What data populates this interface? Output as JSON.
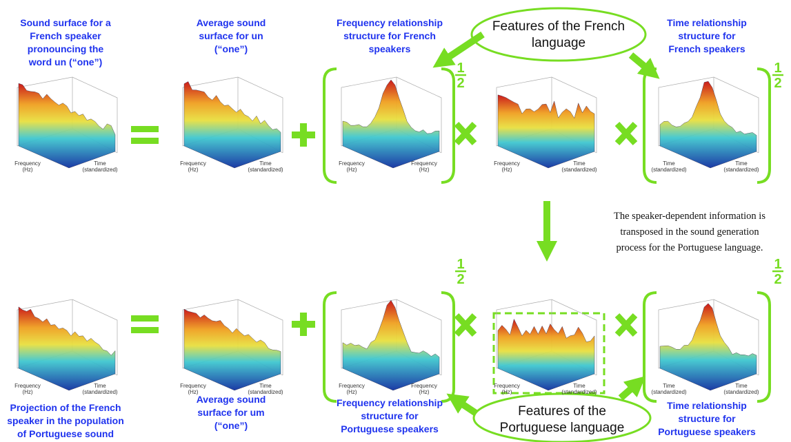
{
  "rows": [
    {
      "panels": [
        {
          "caption": [
            "Sound surface for a",
            "French speaker",
            "pronouncing the",
            "word  un (“one”)"
          ],
          "axis_labels": [
            [
              "Frequency",
              "(Hz)"
            ],
            [
              "Time",
              "(standardized)"
            ]
          ]
        },
        {
          "caption": [
            "Average sound",
            "surface for un",
            "(“one”)"
          ],
          "axis_labels": [
            [
              "Frequency",
              "(Hz)"
            ],
            [
              "Time",
              "(standardized)"
            ]
          ]
        },
        {
          "caption": [
            "Frequency relationship",
            "structure for French",
            "speakers"
          ],
          "axis_labels": [
            [
              "Frequency",
              "(Hz)"
            ],
            [
              "Frequency",
              "(Hz)"
            ]
          ],
          "exponent": [
            "1",
            "2"
          ]
        },
        {
          "axis_labels": [
            [
              "Frequency",
              "(Hz)"
            ],
            [
              "Time",
              "(standardized)"
            ]
          ]
        },
        {
          "caption": [
            "Time relationship",
            "structure for",
            "French speakers"
          ],
          "axis_labels": [
            [
              "Time",
              "(standardized)"
            ],
            [
              "Time",
              "(standardized)"
            ]
          ],
          "exponent": [
            "1",
            "2"
          ]
        }
      ]
    },
    {
      "panels": [
        {
          "caption": [
            "Projection of the French",
            "speaker in the population",
            "of Portuguese sound"
          ],
          "axis_labels": [
            [
              "Frequency",
              "(Hz)"
            ],
            [
              "Time",
              "(standardized)"
            ]
          ]
        },
        {
          "caption": [
            "Average sound",
            "surface for um",
            "(“one”)"
          ],
          "axis_labels": [
            [
              "Frequency",
              "(Hz)"
            ],
            [
              "Time",
              "(standardized)"
            ]
          ]
        },
        {
          "caption": [
            "Frequency relationship",
            "structure for",
            "Portuguese speakers"
          ],
          "axis_labels": [
            [
              "Frequency",
              "(Hz)"
            ],
            [
              "Frequency",
              "(Hz)"
            ]
          ],
          "exponent": [
            "1",
            "2"
          ]
        },
        {
          "axis_labels": [
            [
              "Frequency",
              "(Hz)"
            ],
            [
              "Time",
              "(standardized)"
            ]
          ]
        },
        {
          "caption": [
            "Time relationship",
            "structure for",
            "Portuguese speakers"
          ],
          "axis_labels": [
            [
              "Time",
              "(standardized)"
            ],
            [
              "Time",
              "(standardized)"
            ]
          ],
          "exponent": [
            "1",
            "2"
          ]
        }
      ]
    }
  ],
  "features": {
    "french": [
      "Features of the French",
      "language"
    ],
    "portuguese": [
      "Features of the",
      "Portuguese language"
    ]
  },
  "note": [
    "The speaker-dependent information is",
    "transposed in the sound generation",
    "process for the Portuguese language."
  ]
}
